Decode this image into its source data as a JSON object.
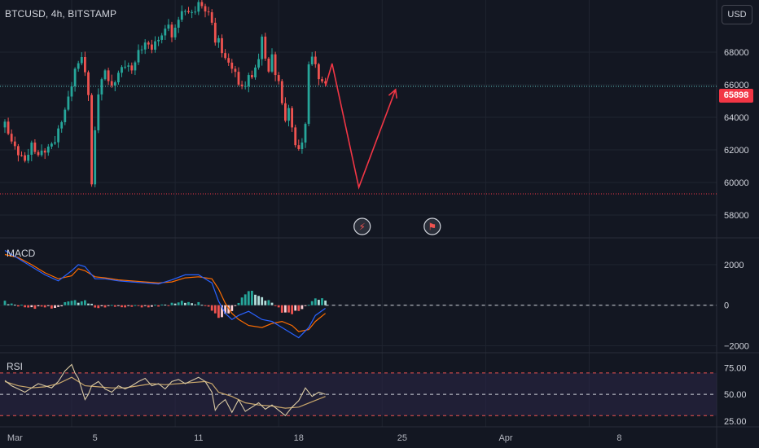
{
  "header": {
    "symbol_title": "BTCUSD, 4h, BITSTAMP",
    "currency": "USD"
  },
  "indicators": {
    "macd_label": "MACD",
    "rsi_label": "RSI"
  },
  "chart_data": [
    {
      "type": "candlestick",
      "pane": "price",
      "yticks": [
        58000,
        60000,
        62000,
        64000,
        66000,
        68000
      ],
      "ytick_labels": [
        "58000",
        "60000",
        "62000",
        "64000",
        "66000",
        "68000"
      ],
      "ylim": [
        56700,
        71200
      ],
      "last_price": 65898,
      "last_price_label": "65898",
      "support_level": 59300,
      "close_path": [
        [
          0,
          63500
        ],
        [
          3,
          62200
        ],
        [
          6,
          61200
        ],
        [
          8,
          62300
        ],
        [
          10,
          61800
        ],
        [
          13,
          62000
        ],
        [
          15,
          62600
        ],
        [
          17,
          63900
        ],
        [
          19,
          65100
        ],
        [
          21,
          66800
        ],
        [
          23,
          67900
        ],
        [
          25,
          65500
        ],
        [
          26,
          59800
        ],
        [
          27,
          63000
        ],
        [
          28,
          65500
        ],
        [
          30,
          67000
        ],
        [
          32,
          65800
        ],
        [
          34,
          66600
        ],
        [
          36,
          67300
        ],
        [
          38,
          67000
        ],
        [
          40,
          67900
        ],
        [
          42,
          68500
        ],
        [
          44,
          68400
        ],
        [
          46,
          68800
        ],
        [
          48,
          69200
        ],
        [
          49,
          69800
        ],
        [
          50,
          68900
        ],
        [
          52,
          70200
        ],
        [
          54,
          70500
        ],
        [
          56,
          70300
        ],
        [
          58,
          71100
        ],
        [
          60,
          70600
        ],
        [
          62,
          69800
        ],
        [
          63,
          68600
        ],
        [
          64,
          68800
        ],
        [
          66,
          67600
        ],
        [
          68,
          67000
        ],
        [
          70,
          66100
        ],
        [
          72,
          65900
        ],
        [
          73,
          66800
        ],
        [
          74,
          66300
        ],
        [
          76,
          67600
        ],
        [
          77,
          68800
        ],
        [
          78,
          67800
        ],
        [
          79,
          66900
        ],
        [
          80,
          67800
        ],
        [
          81,
          66700
        ],
        [
          82,
          66000
        ],
        [
          83,
          64800
        ],
        [
          84,
          63900
        ],
        [
          85,
          64500
        ],
        [
          86,
          63600
        ],
        [
          87,
          62300
        ],
        [
          88,
          61900
        ],
        [
          89,
          62500
        ],
        [
          90,
          63400
        ],
        [
          91,
          67300
        ],
        [
          92,
          67900
        ],
        [
          93,
          67200
        ],
        [
          94,
          66500
        ],
        [
          95,
          66100
        ],
        [
          96,
          65898
        ]
      ],
      "projection": [
        [
          96,
          65898
        ],
        [
          98,
          67300
        ],
        [
          106,
          59700
        ],
        [
          117,
          65700
        ]
      ]
    },
    {
      "type": "macd",
      "pane": "macd",
      "yticks": [
        2000,
        0,
        -2000
      ],
      "ytick_labels": [
        "2000",
        "0",
        "−2000"
      ],
      "ylim": [
        -2300,
        3000
      ],
      "macd": [
        [
          0,
          2700
        ],
        [
          4,
          2300
        ],
        [
          8,
          1900
        ],
        [
          12,
          1500
        ],
        [
          16,
          1200
        ],
        [
          20,
          1700
        ],
        [
          22,
          2000
        ],
        [
          24,
          1900
        ],
        [
          27,
          1300
        ],
        [
          30,
          1300
        ],
        [
          34,
          1200
        ],
        [
          38,
          1150
        ],
        [
          42,
          1100
        ],
        [
          46,
          1050
        ],
        [
          50,
          1250
        ],
        [
          54,
          1500
        ],
        [
          58,
          1500
        ],
        [
          62,
          1100
        ],
        [
          64,
          200
        ],
        [
          66,
          -400
        ],
        [
          68,
          -700
        ],
        [
          70,
          -500
        ],
        [
          73,
          -300
        ],
        [
          77,
          -700
        ],
        [
          80,
          -800
        ],
        [
          83,
          -1100
        ],
        [
          86,
          -1400
        ],
        [
          88,
          -1600
        ],
        [
          91,
          -1100
        ],
        [
          93,
          -500
        ],
        [
          96,
          -150
        ]
      ],
      "signal": [
        [
          0,
          2500
        ],
        [
          4,
          2350
        ],
        [
          8,
          2000
        ],
        [
          12,
          1600
        ],
        [
          16,
          1300
        ],
        [
          20,
          1450
        ],
        [
          22,
          1800
        ],
        [
          24,
          1700
        ],
        [
          27,
          1400
        ],
        [
          30,
          1350
        ],
        [
          34,
          1250
        ],
        [
          38,
          1200
        ],
        [
          42,
          1150
        ],
        [
          46,
          1100
        ],
        [
          50,
          1150
        ],
        [
          54,
          1350
        ],
        [
          58,
          1400
        ],
        [
          62,
          1300
        ],
        [
          64,
          800
        ],
        [
          66,
          100
        ],
        [
          68,
          -400
        ],
        [
          70,
          -700
        ],
        [
          73,
          -1000
        ],
        [
          77,
          -1100
        ],
        [
          80,
          -900
        ],
        [
          83,
          -800
        ],
        [
          86,
          -1000
        ],
        [
          88,
          -1300
        ],
        [
          91,
          -1200
        ],
        [
          93,
          -800
        ],
        [
          96,
          -400
        ]
      ]
    },
    {
      "type": "line",
      "pane": "rsi",
      "yticks": [
        75,
        50,
        25
      ],
      "ytick_labels": [
        "75.00",
        "50.00",
        "25.00"
      ],
      "ylim": [
        21,
        86
      ],
      "band": [
        30,
        70
      ],
      "rsi": [
        [
          0,
          63
        ],
        [
          2,
          58
        ],
        [
          4,
          55
        ],
        [
          6,
          52
        ],
        [
          8,
          56
        ],
        [
          10,
          60
        ],
        [
          12,
          58
        ],
        [
          14,
          56
        ],
        [
          16,
          62
        ],
        [
          18,
          72
        ],
        [
          20,
          78
        ],
        [
          21,
          70
        ],
        [
          22,
          65
        ],
        [
          24,
          45
        ],
        [
          25,
          50
        ],
        [
          26,
          58
        ],
        [
          28,
          62
        ],
        [
          30,
          55
        ],
        [
          32,
          52
        ],
        [
          34,
          58
        ],
        [
          36,
          55
        ],
        [
          38,
          58
        ],
        [
          40,
          62
        ],
        [
          42,
          65
        ],
        [
          44,
          58
        ],
        [
          46,
          60
        ],
        [
          48,
          55
        ],
        [
          50,
          62
        ],
        [
          52,
          64
        ],
        [
          54,
          60
        ],
        [
          56,
          63
        ],
        [
          58,
          66
        ],
        [
          60,
          62
        ],
        [
          62,
          52
        ],
        [
          63,
          35
        ],
        [
          64,
          40
        ],
        [
          66,
          45
        ],
        [
          68,
          33
        ],
        [
          70,
          45
        ],
        [
          72,
          34
        ],
        [
          74,
          38
        ],
        [
          76,
          42
        ],
        [
          78,
          36
        ],
        [
          80,
          40
        ],
        [
          82,
          35
        ],
        [
          84,
          30
        ],
        [
          86,
          38
        ],
        [
          88,
          44
        ],
        [
          90,
          56
        ],
        [
          92,
          48
        ],
        [
          94,
          52
        ],
        [
          96,
          50
        ]
      ],
      "rsi_ma": [
        [
          0,
          62
        ],
        [
          4,
          58
        ],
        [
          8,
          56
        ],
        [
          12,
          57
        ],
        [
          16,
          60
        ],
        [
          20,
          66
        ],
        [
          24,
          58
        ],
        [
          28,
          57
        ],
        [
          32,
          56
        ],
        [
          36,
          56
        ],
        [
          40,
          58
        ],
        [
          44,
          60
        ],
        [
          48,
          59
        ],
        [
          52,
          60
        ],
        [
          56,
          61
        ],
        [
          60,
          62
        ],
        [
          62,
          60
        ],
        [
          64,
          52
        ],
        [
          68,
          48
        ],
        [
          72,
          42
        ],
        [
          76,
          40
        ],
        [
          80,
          39
        ],
        [
          84,
          37
        ],
        [
          88,
          38
        ],
        [
          92,
          43
        ],
        [
          96,
          48
        ]
      ]
    }
  ],
  "time_axis": {
    "labels": [
      {
        "i": 3,
        "text": "Mar"
      },
      {
        "i": 27,
        "text": "5"
      },
      {
        "i": 58,
        "text": "11"
      },
      {
        "i": 88,
        "text": "18"
      },
      {
        "i": 119,
        "text": "25"
      },
      {
        "i": 150,
        "text": "Apr"
      },
      {
        "i": 184,
        "text": "8"
      }
    ]
  },
  "badges": [
    {
      "i": 107,
      "name": "event-badge-1",
      "glyph": "⚡"
    },
    {
      "i": 128,
      "name": "event-badge-2",
      "glyph": "⚑"
    }
  ],
  "colors": {
    "background": "#131722",
    "up": "#26a69a",
    "down": "#ef5350",
    "price_line": "#5bc0be",
    "support_line": "#f23645",
    "projection": "#f23645",
    "macd_line": "#2962ff",
    "signal_line": "#ff6d00",
    "rsi_line": "#d9c9a3",
    "rsi_band": "#2a2545"
  }
}
